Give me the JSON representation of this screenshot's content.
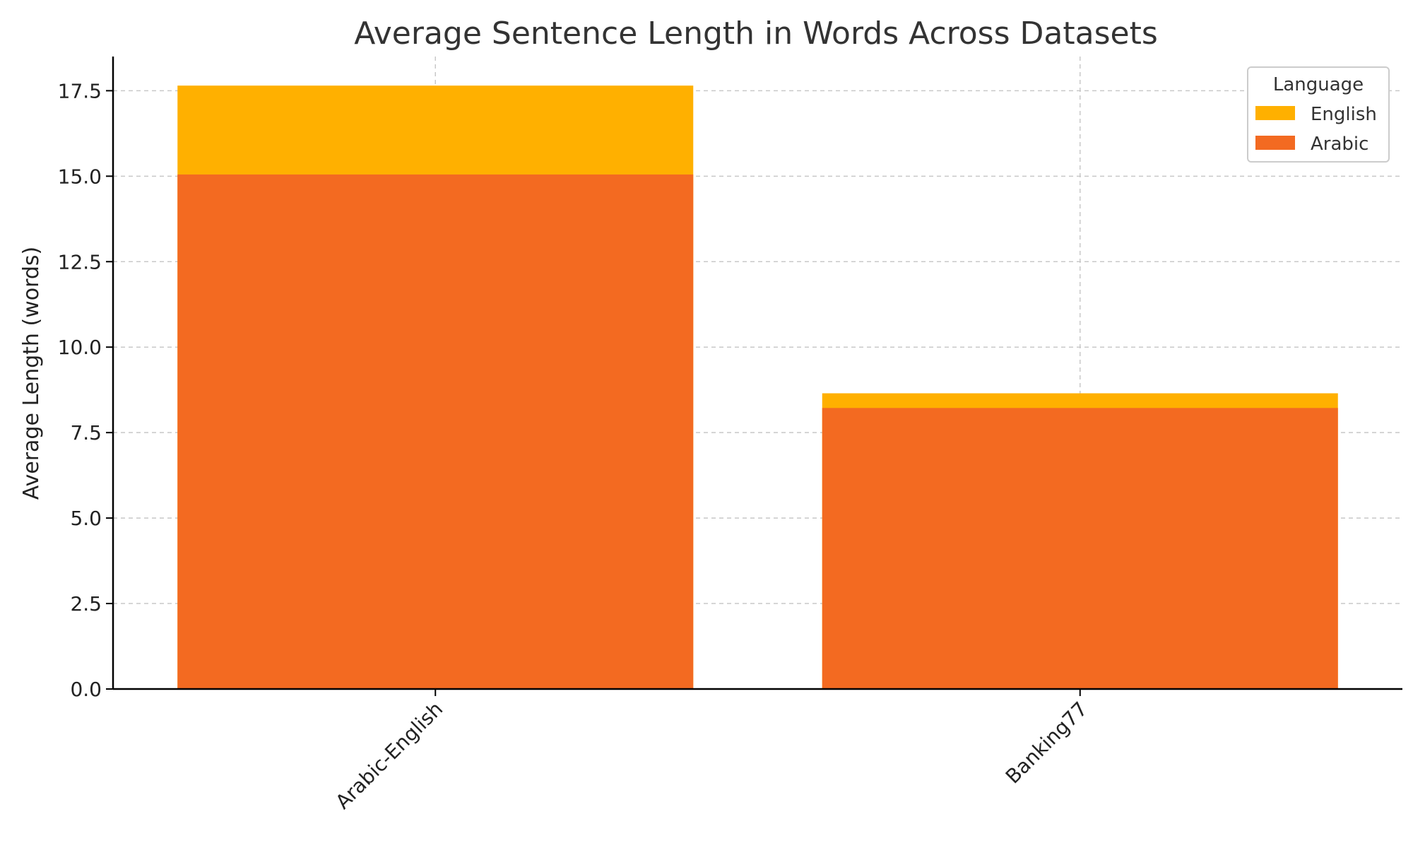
{
  "chart_data": {
    "type": "bar",
    "stacked": false,
    "title": "Average Sentence Length in Words Across Datasets",
    "xlabel": "",
    "ylabel": "Average Length (words)",
    "categories": [
      "Arabic-English",
      "Banking77"
    ],
    "series": [
      {
        "name": "English",
        "values": [
          17.65,
          8.65
        ],
        "color": "#FFB000"
      },
      {
        "name": "Arabic",
        "values": [
          15.05,
          8.22
        ],
        "color": "#F36A21"
      }
    ],
    "ylim": [
      0,
      18.5
    ],
    "yticks": [
      "0.0",
      "2.5",
      "5.0",
      "7.5",
      "10.0",
      "12.5",
      "15.0",
      "17.5"
    ],
    "grid": true,
    "legend": {
      "title": "Language",
      "position": "top-right"
    }
  }
}
